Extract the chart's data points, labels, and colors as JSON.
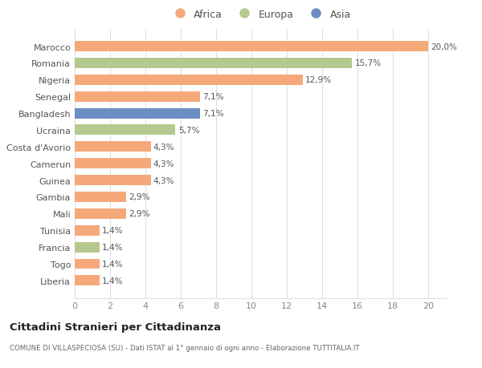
{
  "countries": [
    "Liberia",
    "Togo",
    "Francia",
    "Tunisia",
    "Mali",
    "Gambia",
    "Guinea",
    "Camerun",
    "Costa d'Avorio",
    "Ucraina",
    "Bangladesh",
    "Senegal",
    "Nigeria",
    "Romania",
    "Marocco"
  ],
  "values": [
    1.4,
    1.4,
    1.4,
    1.4,
    2.9,
    2.9,
    4.3,
    4.3,
    4.3,
    5.7,
    7.1,
    7.1,
    12.9,
    15.7,
    20.0
  ],
  "labels": [
    "1,4%",
    "1,4%",
    "1,4%",
    "1,4%",
    "2,9%",
    "2,9%",
    "4,3%",
    "4,3%",
    "4,3%",
    "5,7%",
    "7,1%",
    "7,1%",
    "12,9%",
    "15,7%",
    "20,0%"
  ],
  "continents": [
    "Africa",
    "Africa",
    "Europa",
    "Africa",
    "Africa",
    "Africa",
    "Africa",
    "Africa",
    "Africa",
    "Europa",
    "Asia",
    "Africa",
    "Africa",
    "Europa",
    "Africa"
  ],
  "colors": {
    "Africa": "#F5A97A",
    "Europa": "#B5C98E",
    "Asia": "#6B8EC2"
  },
  "title": "Cittadini Stranieri per Cittadinanza",
  "subtitle": "COMUNE DI VILLASPECIOSA (SU) - Dati ISTAT al 1° gennaio di ogni anno - Elaborazione TUTTITALIA.IT",
  "xlim": [
    0,
    21
  ],
  "xticks": [
    0,
    2,
    4,
    6,
    8,
    10,
    12,
    14,
    16,
    18,
    20
  ],
  "background_color": "#ffffff",
  "grid_color": "#e0e0e0"
}
